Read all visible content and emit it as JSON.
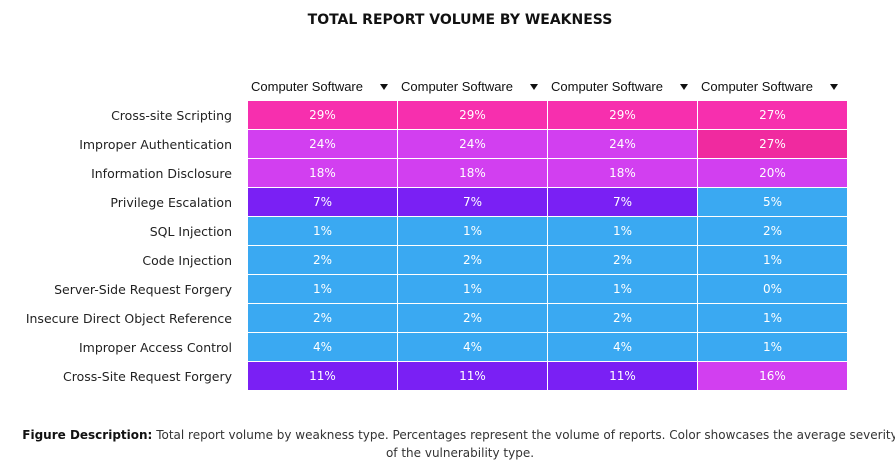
{
  "title": "TOTAL REPORT VOLUME BY WEAKNESS",
  "table": {
    "columns": [
      "Computer Software",
      "Computer Software",
      "Computer Software",
      "Computer Software"
    ],
    "rows": [
      {
        "label": "Cross-site Scripting",
        "cells": [
          "29%",
          "29%",
          "29%",
          "27%"
        ],
        "colors": [
          "#f72fae",
          "#f72fae",
          "#f72fae",
          "#f72fae"
        ]
      },
      {
        "label": "Improper Authentication",
        "cells": [
          "24%",
          "24%",
          "24%",
          "27%"
        ],
        "colors": [
          "#d23ff0",
          "#d23ff0",
          "#d23ff0",
          "#f02a9f"
        ]
      },
      {
        "label": "Information Disclosure",
        "cells": [
          "18%",
          "18%",
          "18%",
          "20%"
        ],
        "colors": [
          "#d23ff0",
          "#d23ff0",
          "#d23ff0",
          "#d23ff0"
        ]
      },
      {
        "label": "Privilege Escalation",
        "cells": [
          "7%",
          "7%",
          "7%",
          "5%"
        ],
        "colors": [
          "#7a20f4",
          "#7a20f4",
          "#7a20f4",
          "#3aa9f2"
        ]
      },
      {
        "label": "SQL Injection",
        "cells": [
          "1%",
          "1%",
          "1%",
          "2%"
        ],
        "colors": [
          "#3aa9f2",
          "#3aa9f2",
          "#3aa9f2",
          "#3aa9f2"
        ]
      },
      {
        "label": "Code Injection",
        "cells": [
          "2%",
          "2%",
          "2%",
          "1%"
        ],
        "colors": [
          "#3aa9f2",
          "#3aa9f2",
          "#3aa9f2",
          "#3aa9f2"
        ]
      },
      {
        "label": "Server-Side Request Forgery",
        "cells": [
          "1%",
          "1%",
          "1%",
          "0%"
        ],
        "colors": [
          "#3aa9f2",
          "#3aa9f2",
          "#3aa9f2",
          "#3aa9f2"
        ]
      },
      {
        "label": "Insecure Direct Object Reference",
        "cells": [
          "2%",
          "2%",
          "2%",
          "1%"
        ],
        "colors": [
          "#3aa9f2",
          "#3aa9f2",
          "#3aa9f2",
          "#3aa9f2"
        ]
      },
      {
        "label": "Improper Access Control",
        "cells": [
          "4%",
          "4%",
          "4%",
          "1%"
        ],
        "colors": [
          "#3aa9f2",
          "#3aa9f2",
          "#3aa9f2",
          "#3aa9f2"
        ]
      },
      {
        "label": "Cross-Site Request Forgery",
        "cells": [
          "11%",
          "11%",
          "11%",
          "16%"
        ],
        "colors": [
          "#7a20f4",
          "#7a20f4",
          "#7a20f4",
          "#d23ff0"
        ]
      }
    ]
  },
  "caption": {
    "label": "Figure Description:",
    "text": "Total report volume by weakness type. Percentages represent the volume of reports. Color showcases the average severity of the vulnerability type."
  }
}
